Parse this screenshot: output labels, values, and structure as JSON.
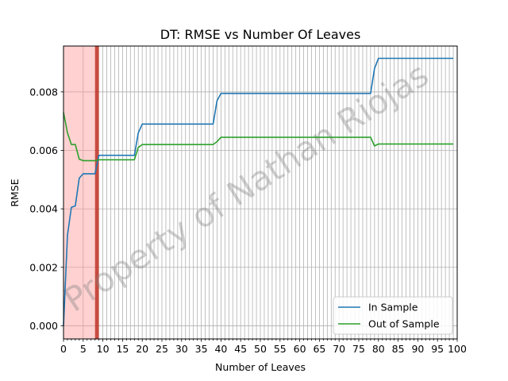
{
  "chart_data": {
    "type": "line",
    "title": "DT: RMSE vs Number Of Leaves",
    "xlabel": "Number of Leaves",
    "ylabel": "RMSE",
    "xlim": [
      0,
      100
    ],
    "ylim": [
      -0.00045,
      0.00957
    ],
    "x_major_ticks": [
      0,
      5,
      10,
      15,
      20,
      25,
      30,
      35,
      40,
      45,
      50,
      55,
      60,
      65,
      70,
      75,
      80,
      85,
      90,
      95,
      100
    ],
    "x_tick_labels": [
      "0",
      "5",
      "10",
      "15",
      "20",
      "25",
      "30",
      "35",
      "40",
      "45",
      "50",
      "55",
      "60",
      "65",
      "70",
      "75",
      "80",
      "85",
      "90",
      "95",
      "100"
    ],
    "y_ticks": [
      0.0,
      0.002,
      0.004,
      0.006,
      0.008
    ],
    "y_tick_labels": [
      "0.000",
      "0.002",
      "0.004",
      "0.006",
      "0.008"
    ],
    "grid": true,
    "legend_position": "bottom-right",
    "overfit_region": {
      "x_start": 0,
      "x_end": 8,
      "color": "#ff9999"
    },
    "optimal_line": {
      "x": 8.5,
      "color": "#c0392b"
    },
    "watermark": "Property of Nathan Riojas",
    "series": [
      {
        "name": "In Sample",
        "color": "#1f77b4",
        "x": [
          0,
          1,
          2,
          3,
          4,
          5,
          6,
          7,
          8,
          9,
          18,
          19,
          20,
          38,
          39,
          40,
          78,
          79,
          80,
          99
        ],
        "y": [
          0.0,
          0.0031,
          0.00405,
          0.0041,
          0.00505,
          0.0052,
          0.0052,
          0.0052,
          0.0052,
          0.00583,
          0.00583,
          0.0066,
          0.0069,
          0.0069,
          0.0077,
          0.00795,
          0.00795,
          0.0088,
          0.00915,
          0.00915
        ]
      },
      {
        "name": "Out of Sample",
        "color": "#2ca02c",
        "x": [
          0,
          1,
          2,
          3,
          4,
          5,
          6,
          7,
          8,
          9,
          18,
          19,
          20,
          38,
          39,
          40,
          78,
          79,
          80,
          99
        ],
        "y": [
          0.0073,
          0.0066,
          0.0062,
          0.0062,
          0.0057,
          0.00565,
          0.00565,
          0.00565,
          0.00565,
          0.00568,
          0.00568,
          0.0061,
          0.0062,
          0.0062,
          0.0063,
          0.00645,
          0.00645,
          0.00615,
          0.00622,
          0.00622
        ]
      }
    ]
  }
}
